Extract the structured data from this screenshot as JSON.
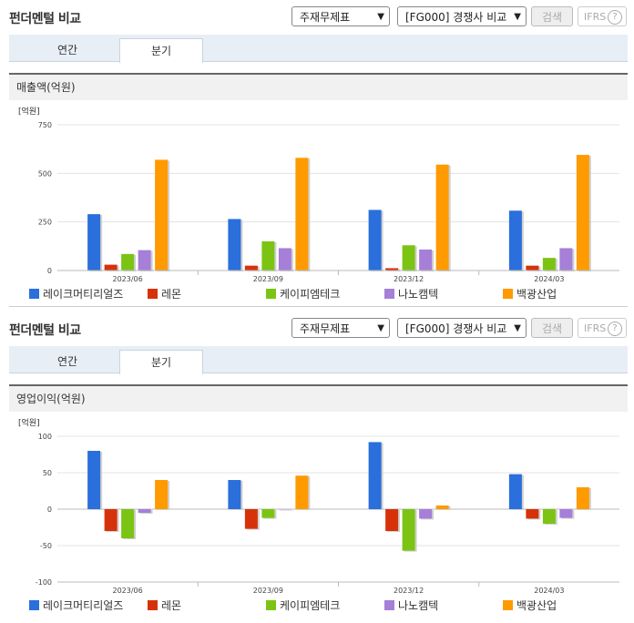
{
  "panels": [
    {
      "title": "펀더멘털 비교",
      "select1": "주재무제표",
      "select2": "[FG000] 경쟁사 비교",
      "search": "검색",
      "ifrs": "IFRS",
      "tabs": [
        "연간",
        "분기"
      ],
      "active_tab": 1,
      "subtitle": "매출액(억원)"
    },
    {
      "title": "펀더멘털 비교",
      "select1": "주재무제표",
      "select2": "[FG000] 경쟁사 비교",
      "search": "검색",
      "ifrs": "IFRS",
      "tabs": [
        "연간",
        "분기"
      ],
      "active_tab": 1,
      "subtitle": "영업이익(억원)"
    }
  ],
  "chart_data": [
    {
      "type": "bar",
      "unit": "[억원]",
      "categories": [
        "2023/06",
        "2023/09",
        "2023/12",
        "2024/03"
      ],
      "ylim": [
        0,
        750
      ],
      "yticks": [
        0,
        250,
        500,
        750
      ],
      "series": [
        {
          "name": "레이크머티리얼즈",
          "color": "#2a6fdb",
          "values": [
            290,
            265,
            312,
            308
          ]
        },
        {
          "name": "레몬",
          "color": "#d6320a",
          "values": [
            30,
            25,
            12,
            25
          ]
        },
        {
          "name": "케이피엠테크",
          "color": "#7cc414",
          "values": [
            85,
            150,
            130,
            65
          ]
        },
        {
          "name": "나노캠텍",
          "color": "#a57fd8",
          "values": [
            105,
            115,
            108,
            115
          ]
        },
        {
          "name": "백광산업",
          "color": "#ff9a00",
          "values": [
            570,
            580,
            545,
            595
          ]
        }
      ]
    },
    {
      "type": "bar",
      "unit": "[억원]",
      "categories": [
        "2023/06",
        "2023/09",
        "2023/12",
        "2024/03"
      ],
      "ylim": [
        -100,
        100
      ],
      "yticks": [
        -100,
        -50,
        0,
        50,
        100
      ],
      "series": [
        {
          "name": "레이크머티리얼즈",
          "color": "#2a6fdb",
          "values": [
            80,
            40,
            92,
            48
          ]
        },
        {
          "name": "레몬",
          "color": "#d6320a",
          "values": [
            -30,
            -27,
            -30,
            -13
          ]
        },
        {
          "name": "케이피엠테크",
          "color": "#7cc414",
          "values": [
            -40,
            -12,
            -57,
            -20
          ]
        },
        {
          "name": "나노캠텍",
          "color": "#a57fd8",
          "values": [
            -5,
            0,
            -13,
            -12
          ]
        },
        {
          "name": "백광산업",
          "color": "#ff9a00",
          "values": [
            40,
            46,
            5,
            30
          ]
        }
      ]
    }
  ]
}
